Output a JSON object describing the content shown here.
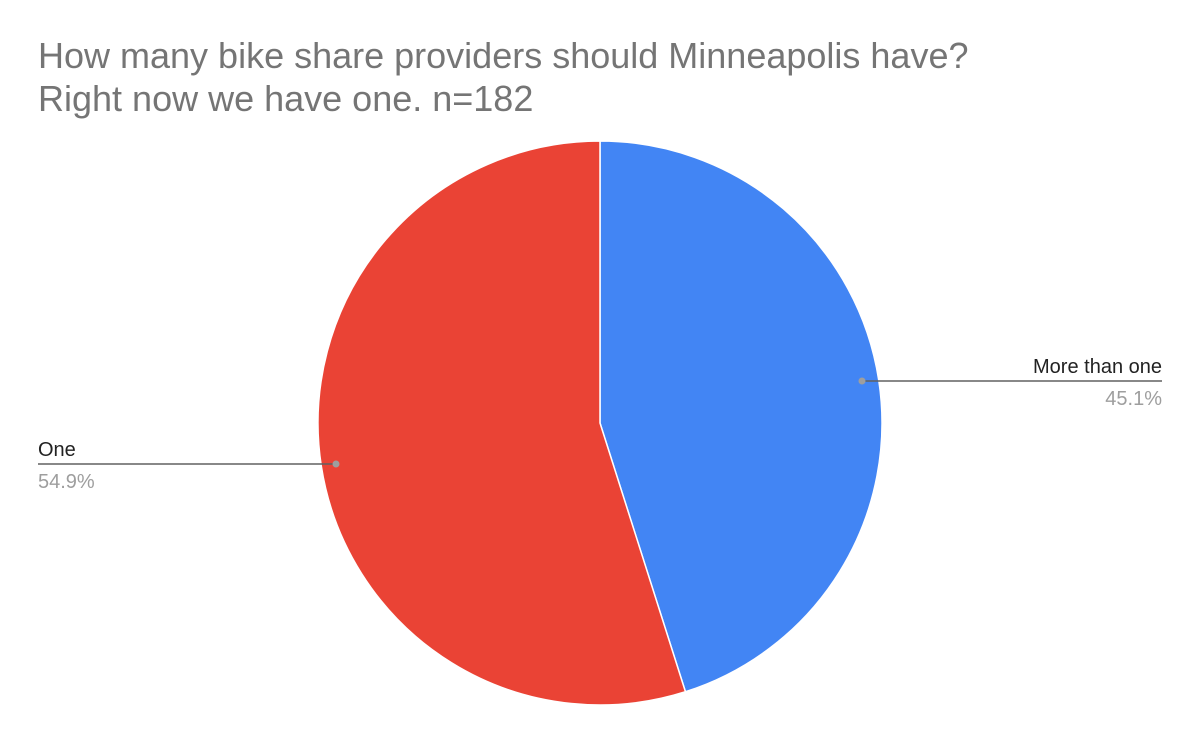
{
  "chart_data": {
    "type": "pie",
    "title_lines": [
      "How many bike share providers should Minneapolis have?",
      "Right now we have one. n=182"
    ],
    "slices": [
      {
        "label": "More than one",
        "value": 45.1,
        "value_label": "45.1%",
        "color": "#4285F4"
      },
      {
        "label": "One",
        "value": 54.9,
        "value_label": "54.9%",
        "color": "#EA4335"
      }
    ],
    "start_angle": "12 o'clock",
    "direction": "clockwise",
    "legend": "none",
    "label_style": "leader-lines with name and percentage"
  }
}
